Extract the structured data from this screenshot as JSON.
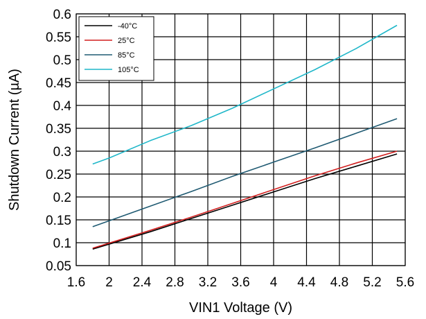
{
  "chart_data": {
    "type": "line",
    "xlabel": "VIN1 Voltage (V)",
    "ylabel": "Shutdown Current (µA)",
    "xlim": [
      1.6,
      5.6
    ],
    "ylim": [
      0.05,
      0.6
    ],
    "xticks": [
      "1.6",
      "2",
      "2.4",
      "2.8",
      "3.2",
      "3.6",
      "4",
      "4.4",
      "4.8",
      "5.2",
      "5.6"
    ],
    "yticks": [
      "0.05",
      "0.1",
      "0.15",
      "0.2",
      "0.25",
      "0.3",
      "0.35",
      "0.4",
      "0.45",
      "0.5",
      "0.55",
      "0.6"
    ],
    "grid": true,
    "legend_position": "top-left",
    "series": [
      {
        "name": "-40°C",
        "color": "#000000",
        "x": [
          1.8,
          2.5,
          3.0,
          3.5,
          4.0,
          4.5,
          5.0,
          5.5
        ],
        "y": [
          0.086,
          0.124,
          0.153,
          0.182,
          0.211,
          0.24,
          0.267,
          0.294
        ]
      },
      {
        "name": "25°C",
        "color": "#d21f1f",
        "x": [
          1.8,
          2.5,
          3.0,
          3.5,
          4.0,
          4.5,
          5.0,
          5.5
        ],
        "y": [
          0.088,
          0.127,
          0.156,
          0.186,
          0.216,
          0.246,
          0.274,
          0.3
        ]
      },
      {
        "name": "85°C",
        "color": "#1f5a72",
        "x": [
          1.8,
          2.5,
          3.0,
          3.5,
          4.0,
          4.5,
          5.0,
          5.5
        ],
        "y": [
          0.135,
          0.18,
          0.212,
          0.245,
          0.276,
          0.307,
          0.339,
          0.371
        ]
      },
      {
        "name": "105°C",
        "color": "#1fb7c9",
        "x": [
          1.8,
          2.0,
          2.5,
          3.0,
          3.5,
          4.0,
          4.5,
          5.0,
          5.5
        ],
        "y": [
          0.272,
          0.285,
          0.323,
          0.356,
          0.394,
          0.436,
          0.478,
          0.524,
          0.575
        ]
      }
    ]
  }
}
